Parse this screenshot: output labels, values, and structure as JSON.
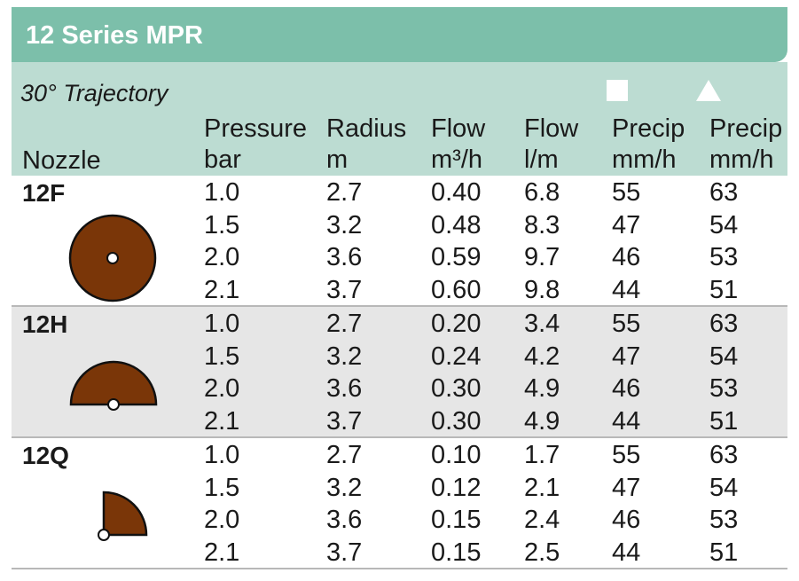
{
  "title": "12 Series MPR",
  "trajectory": "30° Trajectory",
  "colors": {
    "header_green": "#7cbfaa",
    "subheader": "#bcdcd2",
    "nozzle_brown": "#7a3608",
    "row_shade": "#e6e6e6"
  },
  "header": {
    "square_symbol": "square-icon",
    "triangle_symbol": "triangle-icon",
    "nozzle": "Nozzle",
    "pressure": {
      "label": "Pressure",
      "unit": "bar"
    },
    "radius": {
      "label": "Radius",
      "unit": "m"
    },
    "flow_m3": {
      "label": "Flow",
      "unit": "m³/h"
    },
    "flow_l": {
      "label": "Flow",
      "unit": "l/m"
    },
    "precip_square": {
      "label": "Precip",
      "unit": "mm/h"
    },
    "precip_triangle": {
      "label": "Precip",
      "unit": "mm/h"
    }
  },
  "nozzles": [
    {
      "name": "12F",
      "icon": "full-circle-nozzle-icon",
      "rows": [
        {
          "pressure": "1.0",
          "radius": "2.7",
          "flow_m3": "0.40",
          "flow_l": "6.8",
          "precip_sq": "55",
          "precip_tri": "63"
        },
        {
          "pressure": "1.5",
          "radius": "3.2",
          "flow_m3": "0.48",
          "flow_l": "8.3",
          "precip_sq": "47",
          "precip_tri": "54"
        },
        {
          "pressure": "2.0",
          "radius": "3.6",
          "flow_m3": "0.59",
          "flow_l": "9.7",
          "precip_sq": "46",
          "precip_tri": "53"
        },
        {
          "pressure": "2.1",
          "radius": "3.7",
          "flow_m3": "0.60",
          "flow_l": "9.8",
          "precip_sq": "44",
          "precip_tri": "51"
        }
      ]
    },
    {
      "name": "12H",
      "icon": "half-circle-nozzle-icon",
      "rows": [
        {
          "pressure": "1.0",
          "radius": "2.7",
          "flow_m3": "0.20",
          "flow_l": "3.4",
          "precip_sq": "55",
          "precip_tri": "63"
        },
        {
          "pressure": "1.5",
          "radius": "3.2",
          "flow_m3": "0.24",
          "flow_l": "4.2",
          "precip_sq": "47",
          "precip_tri": "54"
        },
        {
          "pressure": "2.0",
          "radius": "3.6",
          "flow_m3": "0.30",
          "flow_l": "4.9",
          "precip_sq": "46",
          "precip_tri": "53"
        },
        {
          "pressure": "2.1",
          "radius": "3.7",
          "flow_m3": "0.30",
          "flow_l": "4.9",
          "precip_sq": "44",
          "precip_tri": "51"
        }
      ]
    },
    {
      "name": "12Q",
      "icon": "quarter-circle-nozzle-icon",
      "rows": [
        {
          "pressure": "1.0",
          "radius": "2.7",
          "flow_m3": "0.10",
          "flow_l": "1.7",
          "precip_sq": "55",
          "precip_tri": "63"
        },
        {
          "pressure": "1.5",
          "radius": "3.2",
          "flow_m3": "0.12",
          "flow_l": "2.1",
          "precip_sq": "47",
          "precip_tri": "54"
        },
        {
          "pressure": "2.0",
          "radius": "3.6",
          "flow_m3": "0.15",
          "flow_l": "2.4",
          "precip_sq": "46",
          "precip_tri": "53"
        },
        {
          "pressure": "2.1",
          "radius": "3.7",
          "flow_m3": "0.15",
          "flow_l": "2.5",
          "precip_sq": "44",
          "precip_tri": "51"
        }
      ]
    }
  ]
}
